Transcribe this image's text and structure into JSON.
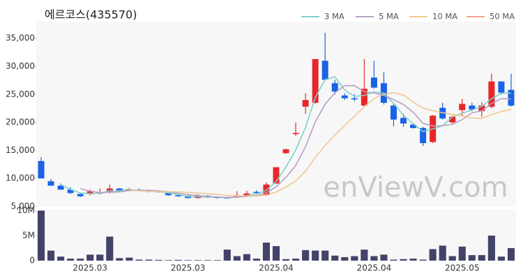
{
  "chart_data": [
    {
      "type": "candlestick",
      "title": "에르코스(435570)",
      "watermark": "enViewV.com",
      "up_color": "#e8262a",
      "down_color": "#1a63e6",
      "open": [
        13100,
        9500,
        8700,
        8000,
        7200,
        7200,
        7300,
        7600,
        8200,
        7800,
        8000,
        7800,
        7700,
        7500,
        7000,
        6900,
        6500,
        6900,
        6700,
        6600,
        6600,
        6900,
        7600,
        7000,
        9100,
        14500,
        17900,
        22800,
        23500,
        31000,
        27000,
        24800,
        24300,
        23000,
        28000,
        27000,
        23000,
        20800,
        19600,
        19000,
        16500,
        22600,
        20000,
        22200,
        23000,
        22000,
        22800,
        27300,
        25800
      ],
      "high": [
        13800,
        9900,
        9100,
        8400,
        7400,
        8000,
        8200,
        8900,
        8300,
        8300,
        8200,
        7900,
        7900,
        7600,
        7200,
        7000,
        7200,
        7000,
        6800,
        6700,
        7700,
        7800,
        7900,
        9300,
        12000,
        15300,
        20000,
        25200,
        31300,
        36000,
        27600,
        25200,
        25000,
        31300,
        31000,
        29000,
        23300,
        21500,
        19900,
        19200,
        21300,
        23500,
        21200,
        24200,
        23500,
        23600,
        28700,
        27300,
        28700
      ],
      "low": [
        10000,
        8700,
        8000,
        7200,
        6700,
        7000,
        7100,
        7300,
        7600,
        7700,
        7700,
        7500,
        7500,
        6900,
        6700,
        6400,
        6400,
        6500,
        6400,
        6400,
        6500,
        6700,
        7300,
        6900,
        9000,
        14400,
        17600,
        21500,
        23300,
        27500,
        25000,
        24000,
        23800,
        22800,
        26000,
        23200,
        19300,
        19200,
        18900,
        15800,
        16300,
        20500,
        19800,
        21200,
        22000,
        21000,
        22500,
        25000,
        22800
      ],
      "close": [
        10000,
        8700,
        8000,
        7400,
        6800,
        7700,
        7500,
        8200,
        7700,
        8100,
        7800,
        7600,
        7600,
        7000,
        6800,
        6500,
        6900,
        6600,
        6500,
        6500,
        7000,
        7300,
        7400,
        8900,
        12000,
        15200,
        18100,
        24000,
        31300,
        27600,
        25500,
        24300,
        24100,
        26000,
        26200,
        23500,
        20500,
        19800,
        19000,
        16300,
        21200,
        20700,
        21000,
        23300,
        22300,
        23000,
        27300,
        25300,
        23000
      ],
      "series": [
        {
          "name": "3 MA",
          "color": "#7fd1c7",
          "values": [
            null,
            null,
            8900,
            8033,
            7400,
            7300,
            7333,
            7800,
            7800,
            8000,
            7867,
            7833,
            7667,
            7400,
            7133,
            6767,
            6733,
            6667,
            6667,
            6533,
            6667,
            6933,
            7233,
            7867,
            9433,
            12033,
            15100,
            19100,
            24467,
            27633,
            28133,
            25800,
            24633,
            24800,
            25433,
            25233,
            23400,
            21267,
            19767,
            18367,
            18833,
            19400,
            20967,
            21667,
            22200,
            22867,
            24200,
            25200,
            25200
          ]
        },
        {
          "name": "5 MA",
          "color": "#b7a0c6",
          "values": [
            null,
            null,
            null,
            null,
            8180,
            7720,
            7480,
            7520,
            7580,
            7840,
            7860,
            7880,
            7760,
            7620,
            7360,
            7100,
            6960,
            6760,
            6660,
            6600,
            6700,
            6780,
            6940,
            7420,
            8520,
            10160,
            12320,
            15640,
            20120,
            23240,
            25300,
            26540,
            26560,
            25500,
            25220,
            24820,
            24060,
            23200,
            21800,
            19820,
            19360,
            19400,
            19640,
            20500,
            21700,
            22060,
            23380,
            24240,
            24180
          ]
        },
        {
          "name": "10 MA",
          "color": "#f0c890",
          "values": [
            null,
            null,
            null,
            null,
            null,
            null,
            null,
            null,
            null,
            8010,
            7790,
            7680,
            7640,
            7600,
            7600,
            7480,
            7420,
            7260,
            7140,
            6980,
            6900,
            6870,
            6850,
            7040,
            7560,
            8430,
            9550,
            11290,
            13770,
            15880,
            17730,
            19430,
            21100,
            22810,
            24230,
            25060,
            25300,
            24880,
            23650,
            22520,
            22090,
            21730,
            21420,
            21150,
            20760,
            20710,
            21390,
            21940,
            22340
          ]
        },
        {
          "name": "50 MA",
          "color": "#f4a08a",
          "values": [
            null,
            null,
            null,
            null,
            null,
            null,
            null,
            null,
            null,
            null,
            null,
            null,
            null,
            null,
            null,
            null,
            null,
            null,
            null,
            null,
            null,
            null,
            null,
            null,
            null,
            null,
            null,
            null,
            null,
            null,
            null,
            null,
            null,
            null,
            null,
            null,
            null,
            null,
            null,
            null,
            null,
            null,
            null,
            null,
            null,
            null,
            null,
            null,
            null
          ]
        }
      ],
      "ylim": [
        5000,
        38000
      ],
      "yticks": [
        {
          "value": 5000,
          "label": "5,000"
        },
        {
          "value": 10000,
          "label": "10,000"
        },
        {
          "value": 15000,
          "label": "15,000"
        },
        {
          "value": 20000,
          "label": "20,000"
        },
        {
          "value": 25000,
          "label": "25,000"
        },
        {
          "value": 30000,
          "label": "30,000"
        },
        {
          "value": 35000,
          "label": "35,000"
        }
      ]
    },
    {
      "type": "bar",
      "color": "#43436a",
      "categories": [
        null,
        null,
        null,
        null,
        null,
        "2025.03",
        null,
        null,
        null,
        null,
        null,
        null,
        null,
        null,
        null,
        "2025.03",
        null,
        null,
        null,
        null,
        null,
        null,
        null,
        null,
        "2025.04",
        null,
        null,
        null,
        null,
        null,
        null,
        null,
        null,
        null,
        "2025.04",
        null,
        null,
        null,
        null,
        null,
        null,
        null,
        null,
        "2025.05",
        null,
        null,
        null,
        null,
        null
      ],
      "values": [
        10000000,
        2000000,
        800000,
        400000,
        400000,
        1200000,
        1200000,
        4800000,
        500000,
        600000,
        200000,
        200000,
        150000,
        100000,
        150000,
        100000,
        100000,
        100000,
        100000,
        2200000,
        900000,
        1300000,
        400000,
        3600000,
        2900000,
        300000,
        400000,
        2100000,
        2000000,
        2000000,
        1000000,
        700000,
        900000,
        2200000,
        900000,
        1200000,
        200000,
        300000,
        400000,
        200000,
        2300000,
        3000000,
        900000,
        2800000,
        1100000,
        1100000,
        5000000,
        800000,
        2500000
      ],
      "ylim": [
        0,
        10000000
      ],
      "yticks": [
        0,
        {
          "value": 5000000,
          "label": "5M"
        },
        {
          "value": 10000000,
          "label": "10M"
        }
      ]
    }
  ]
}
